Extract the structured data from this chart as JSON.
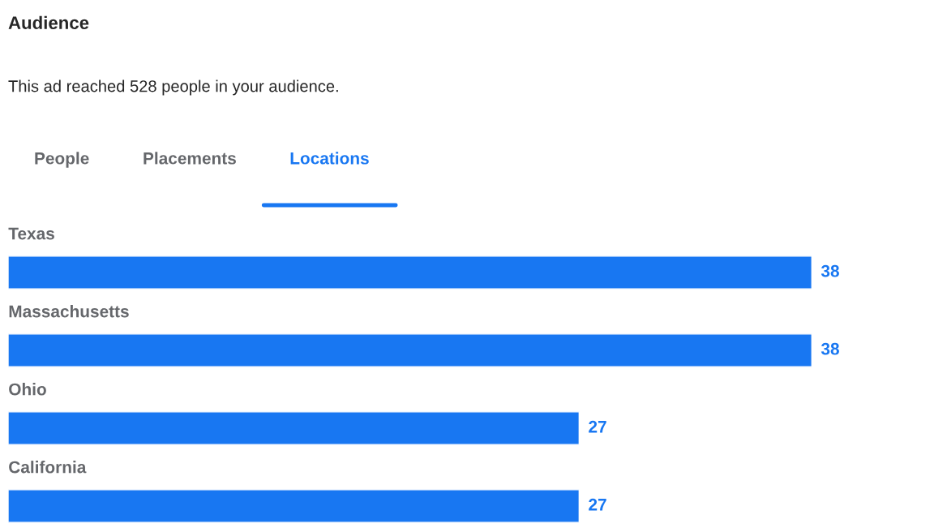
{
  "chart_data": {
    "type": "bar",
    "orientation": "horizontal",
    "title": "Audience",
    "subtitle": "This ad reached 528 people in your audience.",
    "annotations": [
      "People",
      "Placements",
      "Locations"
    ],
    "categories": [
      "Texas",
      "Massachusetts",
      "Ohio",
      "California"
    ],
    "values": [
      38,
      38,
      27,
      27
    ],
    "color": "#1877f2",
    "data_labels": true,
    "grid": false,
    "legend": false,
    "tick_labels": false
  }
}
